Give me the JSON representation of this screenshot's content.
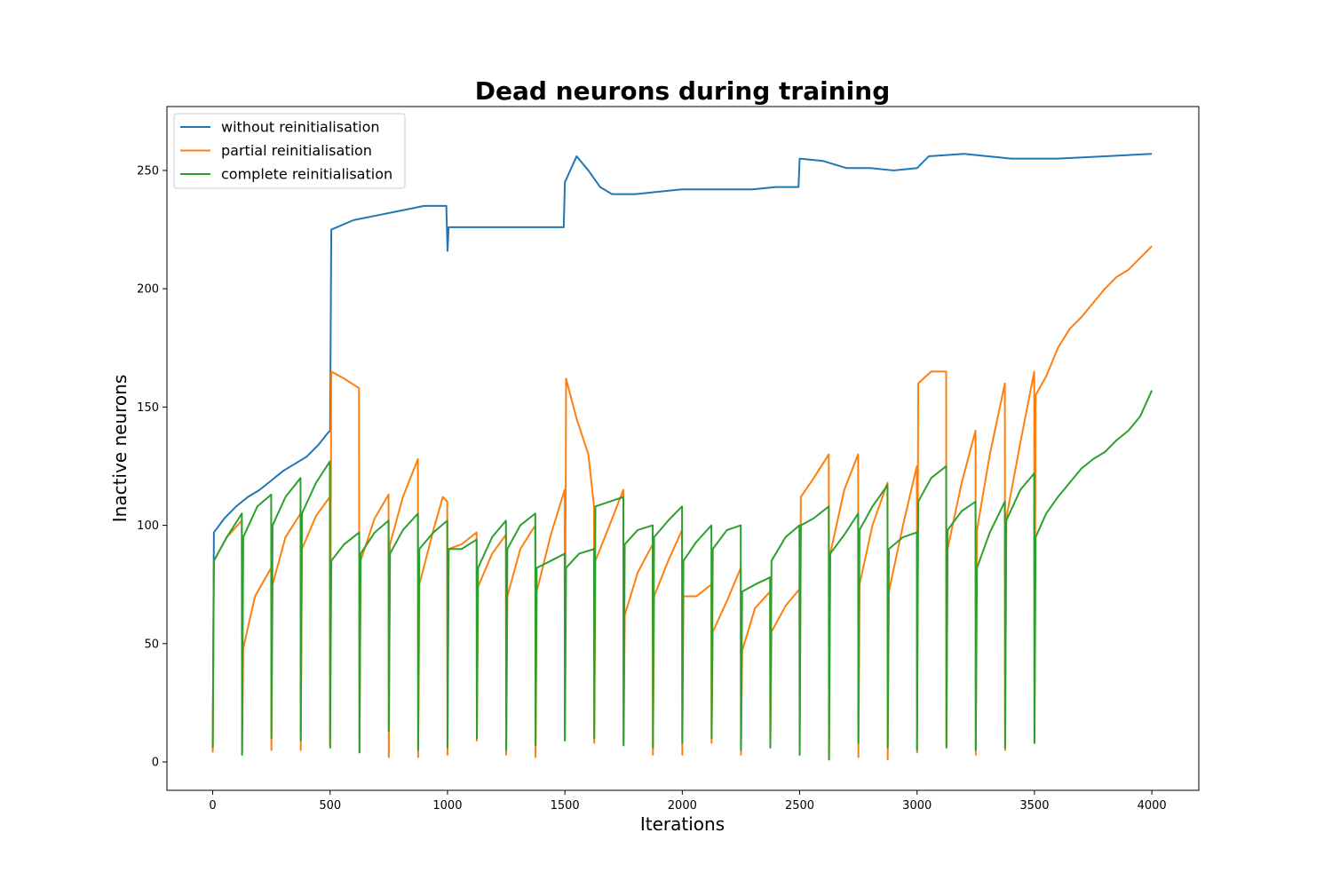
{
  "chart_data": {
    "type": "line",
    "title": "Dead neurons during training",
    "xlabel": "Iterations",
    "ylabel": "Inactive neurons",
    "xlim": [
      -195,
      4200
    ],
    "ylim": [
      -12,
      277
    ],
    "xticks": [
      0,
      500,
      1000,
      1500,
      2000,
      2500,
      3000,
      3500,
      4000
    ],
    "yticks": [
      0,
      50,
      100,
      150,
      200,
      250
    ],
    "grid": false,
    "legend_position": "upper-left",
    "series": [
      {
        "name": "without reinitialisation",
        "color": "#1f77b4",
        "points": [
          [
            0,
            5
          ],
          [
            5,
            97
          ],
          [
            50,
            103
          ],
          [
            100,
            108
          ],
          [
            150,
            112
          ],
          [
            200,
            115
          ],
          [
            250,
            119
          ],
          [
            300,
            123
          ],
          [
            350,
            126
          ],
          [
            400,
            129
          ],
          [
            450,
            134
          ],
          [
            490,
            139
          ],
          [
            500,
            140
          ],
          [
            505,
            225
          ],
          [
            600,
            229
          ],
          [
            700,
            231
          ],
          [
            800,
            233
          ],
          [
            900,
            235
          ],
          [
            995,
            235
          ],
          [
            1000,
            216
          ],
          [
            1005,
            226
          ],
          [
            1100,
            226
          ],
          [
            1200,
            226
          ],
          [
            1300,
            226
          ],
          [
            1400,
            226
          ],
          [
            1495,
            226
          ],
          [
            1500,
            245
          ],
          [
            1550,
            256
          ],
          [
            1600,
            250
          ],
          [
            1650,
            243
          ],
          [
            1700,
            240
          ],
          [
            1800,
            240
          ],
          [
            1900,
            241
          ],
          [
            2000,
            242
          ],
          [
            2100,
            242
          ],
          [
            2200,
            242
          ],
          [
            2300,
            242
          ],
          [
            2400,
            243
          ],
          [
            2495,
            243
          ],
          [
            2500,
            255
          ],
          [
            2600,
            254
          ],
          [
            2700,
            251
          ],
          [
            2800,
            251
          ],
          [
            2900,
            250
          ],
          [
            3000,
            251
          ],
          [
            3050,
            256
          ],
          [
            3200,
            257
          ],
          [
            3400,
            255
          ],
          [
            3600,
            255
          ],
          [
            3800,
            256
          ],
          [
            4000,
            257
          ]
        ]
      },
      {
        "name": "partial reinitialisation",
        "color": "#ff7f0e",
        "points": [
          [
            0,
            4
          ],
          [
            5,
            85
          ],
          [
            60,
            95
          ],
          [
            124,
            102
          ],
          [
            125,
            3
          ],
          [
            130,
            48
          ],
          [
            180,
            70
          ],
          [
            249,
            82
          ],
          [
            250,
            5
          ],
          [
            255,
            75
          ],
          [
            310,
            95
          ],
          [
            374,
            105
          ],
          [
            375,
            5
          ],
          [
            380,
            90
          ],
          [
            440,
            104
          ],
          [
            499,
            112
          ],
          [
            500,
            7
          ],
          [
            505,
            165
          ],
          [
            560,
            162
          ],
          [
            623,
            158
          ],
          [
            625,
            4
          ],
          [
            630,
            85
          ],
          [
            690,
            103
          ],
          [
            749,
            113
          ],
          [
            750,
            2
          ],
          [
            755,
            92
          ],
          [
            810,
            112
          ],
          [
            874,
            128
          ],
          [
            875,
            2
          ],
          [
            880,
            75
          ],
          [
            940,
            98
          ],
          [
            980,
            112
          ],
          [
            999,
            110
          ],
          [
            1000,
            3
          ],
          [
            1005,
            90
          ],
          [
            1060,
            92
          ],
          [
            1124,
            97
          ],
          [
            1125,
            9
          ],
          [
            1130,
            74
          ],
          [
            1190,
            88
          ],
          [
            1249,
            96
          ],
          [
            1250,
            3
          ],
          [
            1255,
            70
          ],
          [
            1310,
            90
          ],
          [
            1374,
            100
          ],
          [
            1375,
            2
          ],
          [
            1380,
            72
          ],
          [
            1440,
            96
          ],
          [
            1499,
            115
          ],
          [
            1500,
            9
          ],
          [
            1505,
            162
          ],
          [
            1550,
            145
          ],
          [
            1600,
            130
          ],
          [
            1624,
            108
          ],
          [
            1625,
            8
          ],
          [
            1630,
            85
          ],
          [
            1690,
            100
          ],
          [
            1749,
            115
          ],
          [
            1750,
            7
          ],
          [
            1755,
            62
          ],
          [
            1810,
            80
          ],
          [
            1874,
            92
          ],
          [
            1875,
            3
          ],
          [
            1880,
            70
          ],
          [
            1940,
            85
          ],
          [
            1999,
            98
          ],
          [
            2000,
            3
          ],
          [
            2005,
            70
          ],
          [
            2060,
            70
          ],
          [
            2124,
            75
          ],
          [
            2125,
            8
          ],
          [
            2130,
            55
          ],
          [
            2190,
            68
          ],
          [
            2249,
            82
          ],
          [
            2250,
            3
          ],
          [
            2255,
            47
          ],
          [
            2310,
            65
          ],
          [
            2374,
            72
          ],
          [
            2375,
            7
          ],
          [
            2380,
            55
          ],
          [
            2440,
            66
          ],
          [
            2499,
            73
          ],
          [
            2500,
            3
          ],
          [
            2505,
            112
          ],
          [
            2560,
            120
          ],
          [
            2624,
            130
          ],
          [
            2625,
            1
          ],
          [
            2630,
            88
          ],
          [
            2690,
            115
          ],
          [
            2749,
            130
          ],
          [
            2750,
            2
          ],
          [
            2755,
            75
          ],
          [
            2810,
            100
          ],
          [
            2874,
            118
          ],
          [
            2875,
            1
          ],
          [
            2880,
            72
          ],
          [
            2940,
            100
          ],
          [
            2999,
            125
          ],
          [
            3000,
            4
          ],
          [
            3005,
            160
          ],
          [
            3060,
            165
          ],
          [
            3124,
            165
          ],
          [
            3125,
            7
          ],
          [
            3130,
            90
          ],
          [
            3190,
            118
          ],
          [
            3249,
            140
          ],
          [
            3250,
            3
          ],
          [
            3255,
            98
          ],
          [
            3310,
            130
          ],
          [
            3374,
            160
          ],
          [
            3375,
            5
          ],
          [
            3380,
            103
          ],
          [
            3440,
            135
          ],
          [
            3499,
            165
          ],
          [
            3500,
            8
          ],
          [
            3505,
            155
          ],
          [
            3550,
            163
          ],
          [
            3600,
            175
          ],
          [
            3650,
            183
          ],
          [
            3700,
            188
          ],
          [
            3750,
            194
          ],
          [
            3800,
            200
          ],
          [
            3850,
            205
          ],
          [
            3900,
            208
          ],
          [
            3950,
            213
          ],
          [
            4000,
            218
          ]
        ]
      },
      {
        "name": "complete reinitialisation",
        "color": "#2ca02c",
        "points": [
          [
            0,
            6
          ],
          [
            5,
            85
          ],
          [
            60,
            95
          ],
          [
            124,
            105
          ],
          [
            125,
            3
          ],
          [
            130,
            95
          ],
          [
            190,
            108
          ],
          [
            249,
            113
          ],
          [
            250,
            10
          ],
          [
            255,
            100
          ],
          [
            310,
            112
          ],
          [
            374,
            120
          ],
          [
            375,
            9
          ],
          [
            380,
            105
          ],
          [
            440,
            118
          ],
          [
            499,
            127
          ],
          [
            500,
            6
          ],
          [
            505,
            85
          ],
          [
            560,
            92
          ],
          [
            624,
            97
          ],
          [
            625,
            4
          ],
          [
            630,
            88
          ],
          [
            690,
            97
          ],
          [
            749,
            102
          ],
          [
            750,
            13
          ],
          [
            755,
            88
          ],
          [
            810,
            98
          ],
          [
            874,
            105
          ],
          [
            875,
            5
          ],
          [
            880,
            90
          ],
          [
            940,
            97
          ],
          [
            999,
            102
          ],
          [
            1000,
            6
          ],
          [
            1005,
            90
          ],
          [
            1060,
            90
          ],
          [
            1124,
            94
          ],
          [
            1125,
            10
          ],
          [
            1130,
            82
          ],
          [
            1190,
            95
          ],
          [
            1249,
            102
          ],
          [
            1250,
            5
          ],
          [
            1255,
            90
          ],
          [
            1310,
            100
          ],
          [
            1374,
            105
          ],
          [
            1375,
            7
          ],
          [
            1380,
            82
          ],
          [
            1440,
            85
          ],
          [
            1499,
            88
          ],
          [
            1500,
            9
          ],
          [
            1505,
            82
          ],
          [
            1560,
            88
          ],
          [
            1624,
            90
          ],
          [
            1625,
            10
          ],
          [
            1630,
            108
          ],
          [
            1690,
            110
          ],
          [
            1749,
            112
          ],
          [
            1750,
            7
          ],
          [
            1755,
            92
          ],
          [
            1810,
            98
          ],
          [
            1874,
            100
          ],
          [
            1875,
            6
          ],
          [
            1880,
            95
          ],
          [
            1940,
            102
          ],
          [
            1999,
            108
          ],
          [
            2000,
            8
          ],
          [
            2005,
            85
          ],
          [
            2060,
            93
          ],
          [
            2124,
            100
          ],
          [
            2125,
            10
          ],
          [
            2130,
            90
          ],
          [
            2190,
            98
          ],
          [
            2249,
            100
          ],
          [
            2250,
            5
          ],
          [
            2255,
            72
          ],
          [
            2310,
            75
          ],
          [
            2374,
            78
          ],
          [
            2375,
            6
          ],
          [
            2380,
            85
          ],
          [
            2440,
            95
          ],
          [
            2499,
            100
          ],
          [
            2500,
            3
          ],
          [
            2505,
            100
          ],
          [
            2560,
            103
          ],
          [
            2624,
            108
          ],
          [
            2625,
            1
          ],
          [
            2630,
            88
          ],
          [
            2690,
            96
          ],
          [
            2749,
            105
          ],
          [
            2750,
            8
          ],
          [
            2755,
            98
          ],
          [
            2810,
            108
          ],
          [
            2874,
            117
          ],
          [
            2875,
            6
          ],
          [
            2880,
            90
          ],
          [
            2940,
            95
          ],
          [
            2999,
            97
          ],
          [
            3000,
            5
          ],
          [
            3005,
            110
          ],
          [
            3060,
            120
          ],
          [
            3124,
            125
          ],
          [
            3125,
            6
          ],
          [
            3130,
            98
          ],
          [
            3190,
            106
          ],
          [
            3249,
            110
          ],
          [
            3250,
            5
          ],
          [
            3255,
            82
          ],
          [
            3310,
            97
          ],
          [
            3374,
            110
          ],
          [
            3375,
            6
          ],
          [
            3380,
            102
          ],
          [
            3440,
            115
          ],
          [
            3499,
            122
          ],
          [
            3500,
            8
          ],
          [
            3505,
            95
          ],
          [
            3550,
            105
          ],
          [
            3600,
            112
          ],
          [
            3650,
            118
          ],
          [
            3700,
            124
          ],
          [
            3750,
            128
          ],
          [
            3800,
            131
          ],
          [
            3850,
            136
          ],
          [
            3900,
            140
          ],
          [
            3950,
            146
          ],
          [
            4000,
            157
          ]
        ]
      }
    ]
  }
}
